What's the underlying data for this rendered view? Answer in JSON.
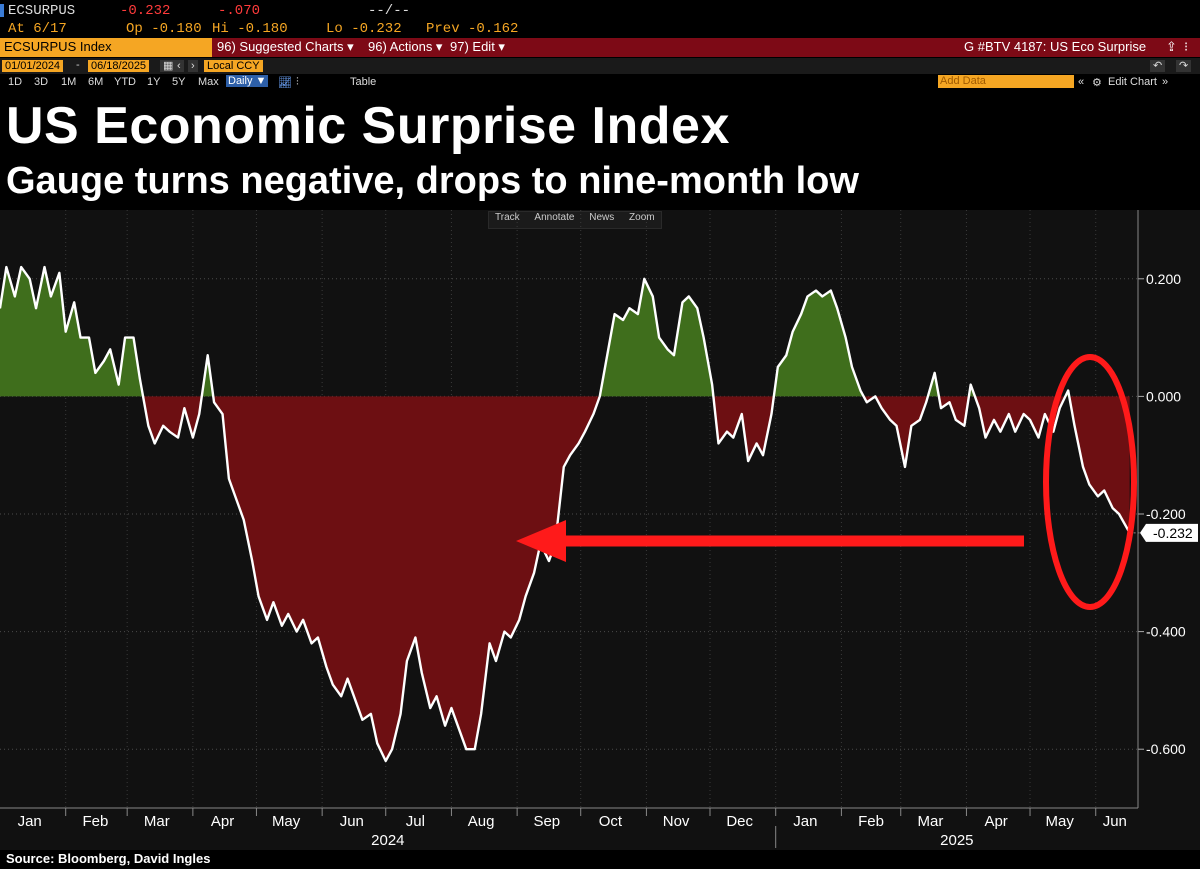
{
  "header": {
    "ticker": "ECSURPUS",
    "last": "-0.232",
    "change": "-.070",
    "mid": "--/--",
    "at": "At 6/17",
    "open": "Op -0.180",
    "hi": "Hi -0.180",
    "lo": "Lo -0.232",
    "prev": "Prev -0.162"
  },
  "toolbar": {
    "index_name": "ECSURPUS Index",
    "suggested": "96) Suggested Charts ▾",
    "actions": "96) Actions ▾",
    "edit": "97) Edit ▾",
    "gtitle": "G #BTV 4187: US Eco Surprise"
  },
  "range": {
    "start": "01/01/2024",
    "end": "06/18/2025",
    "ccy": "Local CCY",
    "periods": [
      "1D",
      "3D",
      "1M",
      "6M",
      "YTD",
      "1Y",
      "5Y",
      "Max"
    ],
    "freq": "Daily ▼",
    "table": "Table",
    "add_data": "Add Data",
    "edit_chart": "Edit Chart"
  },
  "chart_tools": [
    "Track",
    "Annotate",
    "News",
    "Zoom"
  ],
  "source": "Source:  Bloomberg, David Ingles",
  "chart_data": {
    "type": "area",
    "title": "US Economic Surprise Index",
    "subtitle": "Gauge turns negative, drops to nine-month low",
    "x_ticks": [
      "Jan",
      "Feb",
      "Mar",
      "Apr",
      "May",
      "Jun",
      "Jul",
      "Aug",
      "Sep",
      "Oct",
      "Nov",
      "Dec",
      "Jan",
      "Feb",
      "Mar",
      "Apr",
      "May",
      "Jun"
    ],
    "years": [
      "2024",
      "2025"
    ],
    "y_ticks": [
      "0.200",
      "0.000",
      "-0.200",
      "-0.400",
      "-0.600"
    ],
    "ylim": [
      -0.7,
      0.3
    ],
    "last_value_label": "-0.232",
    "colors": {
      "positive": "#3f6e1c",
      "negative": "#6d0f12",
      "line": "#ffffff",
      "annotation": "#ff1a1a"
    },
    "series": [
      {
        "values": [
          [
            "2024-01-01",
            0.15
          ],
          [
            "2024-01-04",
            0.22
          ],
          [
            "2024-01-08",
            0.17
          ],
          [
            "2024-01-11",
            0.22
          ],
          [
            "2024-01-15",
            0.2
          ],
          [
            "2024-01-18",
            0.15
          ],
          [
            "2024-01-22",
            0.22
          ],
          [
            "2024-01-25",
            0.17
          ],
          [
            "2024-01-29",
            0.21
          ],
          [
            "2024-02-01",
            0.11
          ],
          [
            "2024-02-05",
            0.16
          ],
          [
            "2024-02-08",
            0.1
          ],
          [
            "2024-02-12",
            0.1
          ],
          [
            "2024-02-15",
            0.04
          ],
          [
            "2024-02-19",
            0.06
          ],
          [
            "2024-02-22",
            0.08
          ],
          [
            "2024-02-26",
            0.02
          ],
          [
            "2024-02-29",
            0.1
          ],
          [
            "2024-03-04",
            0.1
          ],
          [
            "2024-03-07",
            0.03
          ],
          [
            "2024-03-11",
            -0.05
          ],
          [
            "2024-03-14",
            -0.08
          ],
          [
            "2024-03-18",
            -0.05
          ],
          [
            "2024-03-21",
            -0.06
          ],
          [
            "2024-03-25",
            -0.07
          ],
          [
            "2024-03-28",
            -0.02
          ],
          [
            "2024-04-01",
            -0.07
          ],
          [
            "2024-04-04",
            -0.03
          ],
          [
            "2024-04-08",
            0.07
          ],
          [
            "2024-04-11",
            -0.01
          ],
          [
            "2024-04-15",
            -0.03
          ],
          [
            "2024-04-18",
            -0.14
          ],
          [
            "2024-04-22",
            -0.18
          ],
          [
            "2024-04-25",
            -0.21
          ],
          [
            "2024-04-29",
            -0.28
          ],
          [
            "2024-05-02",
            -0.34
          ],
          [
            "2024-05-06",
            -0.38
          ],
          [
            "2024-05-09",
            -0.35
          ],
          [
            "2024-05-13",
            -0.39
          ],
          [
            "2024-05-16",
            -0.37
          ],
          [
            "2024-05-20",
            -0.4
          ],
          [
            "2024-05-23",
            -0.38
          ],
          [
            "2024-05-27",
            -0.42
          ],
          [
            "2024-05-30",
            -0.41
          ],
          [
            "2024-06-03",
            -0.46
          ],
          [
            "2024-06-06",
            -0.49
          ],
          [
            "2024-06-10",
            -0.51
          ],
          [
            "2024-06-13",
            -0.48
          ],
          [
            "2024-06-17",
            -0.52
          ],
          [
            "2024-06-20",
            -0.55
          ],
          [
            "2024-06-24",
            -0.54
          ],
          [
            "2024-06-27",
            -0.59
          ],
          [
            "2024-07-01",
            -0.62
          ],
          [
            "2024-07-04",
            -0.6
          ],
          [
            "2024-07-08",
            -0.54
          ],
          [
            "2024-07-11",
            -0.45
          ],
          [
            "2024-07-15",
            -0.41
          ],
          [
            "2024-07-18",
            -0.47
          ],
          [
            "2024-07-22",
            -0.53
          ],
          [
            "2024-07-25",
            -0.51
          ],
          [
            "2024-07-29",
            -0.56
          ],
          [
            "2024-08-01",
            -0.53
          ],
          [
            "2024-08-05",
            -0.57
          ],
          [
            "2024-08-08",
            -0.6
          ],
          [
            "2024-08-12",
            -0.6
          ],
          [
            "2024-08-15",
            -0.54
          ],
          [
            "2024-08-19",
            -0.42
          ],
          [
            "2024-08-22",
            -0.45
          ],
          [
            "2024-08-26",
            -0.4
          ],
          [
            "2024-08-29",
            -0.41
          ],
          [
            "2024-09-02",
            -0.38
          ],
          [
            "2024-09-05",
            -0.34
          ],
          [
            "2024-09-09",
            -0.3
          ],
          [
            "2024-09-12",
            -0.25
          ],
          [
            "2024-09-16",
            -0.28
          ],
          [
            "2024-09-19",
            -0.25
          ],
          [
            "2024-09-23",
            -0.12
          ],
          [
            "2024-09-26",
            -0.1
          ],
          [
            "2024-09-30",
            -0.08
          ],
          [
            "2024-10-03",
            -0.06
          ],
          [
            "2024-10-07",
            -0.03
          ],
          [
            "2024-10-10",
            0.0
          ],
          [
            "2024-10-14",
            0.08
          ],
          [
            "2024-10-17",
            0.14
          ],
          [
            "2024-10-21",
            0.13
          ],
          [
            "2024-10-24",
            0.15
          ],
          [
            "2024-10-28",
            0.14
          ],
          [
            "2024-10-31",
            0.2
          ],
          [
            "2024-11-04",
            0.17
          ],
          [
            "2024-11-07",
            0.1
          ],
          [
            "2024-11-11",
            0.08
          ],
          [
            "2024-11-14",
            0.07
          ],
          [
            "2024-11-18",
            0.16
          ],
          [
            "2024-11-21",
            0.17
          ],
          [
            "2024-11-25",
            0.15
          ],
          [
            "2024-11-28",
            0.1
          ],
          [
            "2024-12-02",
            0.02
          ],
          [
            "2024-12-05",
            -0.08
          ],
          [
            "2024-12-09",
            -0.06
          ],
          [
            "2024-12-12",
            -0.07
          ],
          [
            "2024-12-16",
            -0.03
          ],
          [
            "2024-12-19",
            -0.11
          ],
          [
            "2024-12-23",
            -0.08
          ],
          [
            "2024-12-26",
            -0.1
          ],
          [
            "2024-12-30",
            -0.03
          ],
          [
            "2025-01-02",
            0.05
          ],
          [
            "2025-01-06",
            0.07
          ],
          [
            "2025-01-09",
            0.11
          ],
          [
            "2025-01-13",
            0.14
          ],
          [
            "2025-01-16",
            0.17
          ],
          [
            "2025-01-20",
            0.18
          ],
          [
            "2025-01-23",
            0.17
          ],
          [
            "2025-01-27",
            0.18
          ],
          [
            "2025-01-30",
            0.15
          ],
          [
            "2025-02-03",
            0.1
          ],
          [
            "2025-02-06",
            0.05
          ],
          [
            "2025-02-10",
            0.01
          ],
          [
            "2025-02-13",
            -0.01
          ],
          [
            "2025-02-17",
            0.0
          ],
          [
            "2025-02-20",
            -0.02
          ],
          [
            "2025-02-24",
            -0.04
          ],
          [
            "2025-02-27",
            -0.05
          ],
          [
            "2025-03-03",
            -0.12
          ],
          [
            "2025-03-06",
            -0.05
          ],
          [
            "2025-03-10",
            -0.04
          ],
          [
            "2025-03-13",
            -0.01
          ],
          [
            "2025-03-17",
            0.04
          ],
          [
            "2025-03-20",
            -0.02
          ],
          [
            "2025-03-24",
            -0.01
          ],
          [
            "2025-03-27",
            -0.04
          ],
          [
            "2025-03-31",
            -0.05
          ],
          [
            "2025-04-03",
            0.02
          ],
          [
            "2025-04-07",
            -0.02
          ],
          [
            "2025-04-10",
            -0.07
          ],
          [
            "2025-04-14",
            -0.04
          ],
          [
            "2025-04-17",
            -0.06
          ],
          [
            "2025-04-21",
            -0.03
          ],
          [
            "2025-04-24",
            -0.06
          ],
          [
            "2025-04-28",
            -0.03
          ],
          [
            "2025-05-01",
            -0.04
          ],
          [
            "2025-05-05",
            -0.07
          ],
          [
            "2025-05-08",
            -0.03
          ],
          [
            "2025-05-12",
            -0.06
          ],
          [
            "2025-05-15",
            -0.02
          ],
          [
            "2025-05-19",
            0.01
          ],
          [
            "2025-05-22",
            -0.05
          ],
          [
            "2025-05-26",
            -0.12
          ],
          [
            "2025-05-29",
            -0.15
          ],
          [
            "2025-06-02",
            -0.17
          ],
          [
            "2025-06-05",
            -0.16
          ],
          [
            "2025-06-09",
            -0.19
          ],
          [
            "2025-06-12",
            -0.2
          ],
          [
            "2025-06-17",
            -0.232
          ]
        ]
      }
    ]
  }
}
